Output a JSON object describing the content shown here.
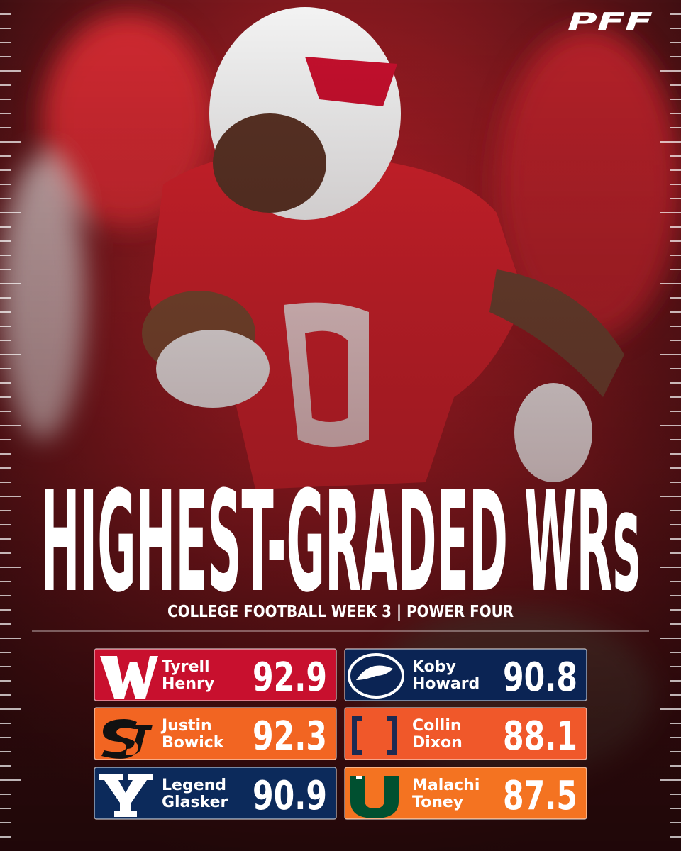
{
  "brand": "PFF",
  "title": "HIGHEST-GRADED WRs",
  "subtitle": "COLLEGE FOOTBALL WEEK 3 | POWER FOUR",
  "players": [
    {
      "first_name": "Tyrell",
      "last_name": "Henry",
      "grade": 92.9,
      "color": "#c8102e"
    },
    {
      "first_name": "Koby",
      "last_name": "Howard",
      "grade": 90.8,
      "color": "#0b2454"
    },
    {
      "first_name": "Justin",
      "last_name": "Bowick",
      "grade": 92.3,
      "color": "#f26522"
    },
    {
      "first_name": "Collin",
      "last_name": "Dixon",
      "grade": 88.1,
      "color": "#f0582a"
    },
    {
      "first_name": "Legend",
      "last_name": "Glasker",
      "grade": 90.9,
      "color": "#0c2a5b"
    },
    {
      "first_name": "Malachi",
      "last_name": "Toney",
      "grade": 87.5,
      "color": "#f47321"
    }
  ]
}
